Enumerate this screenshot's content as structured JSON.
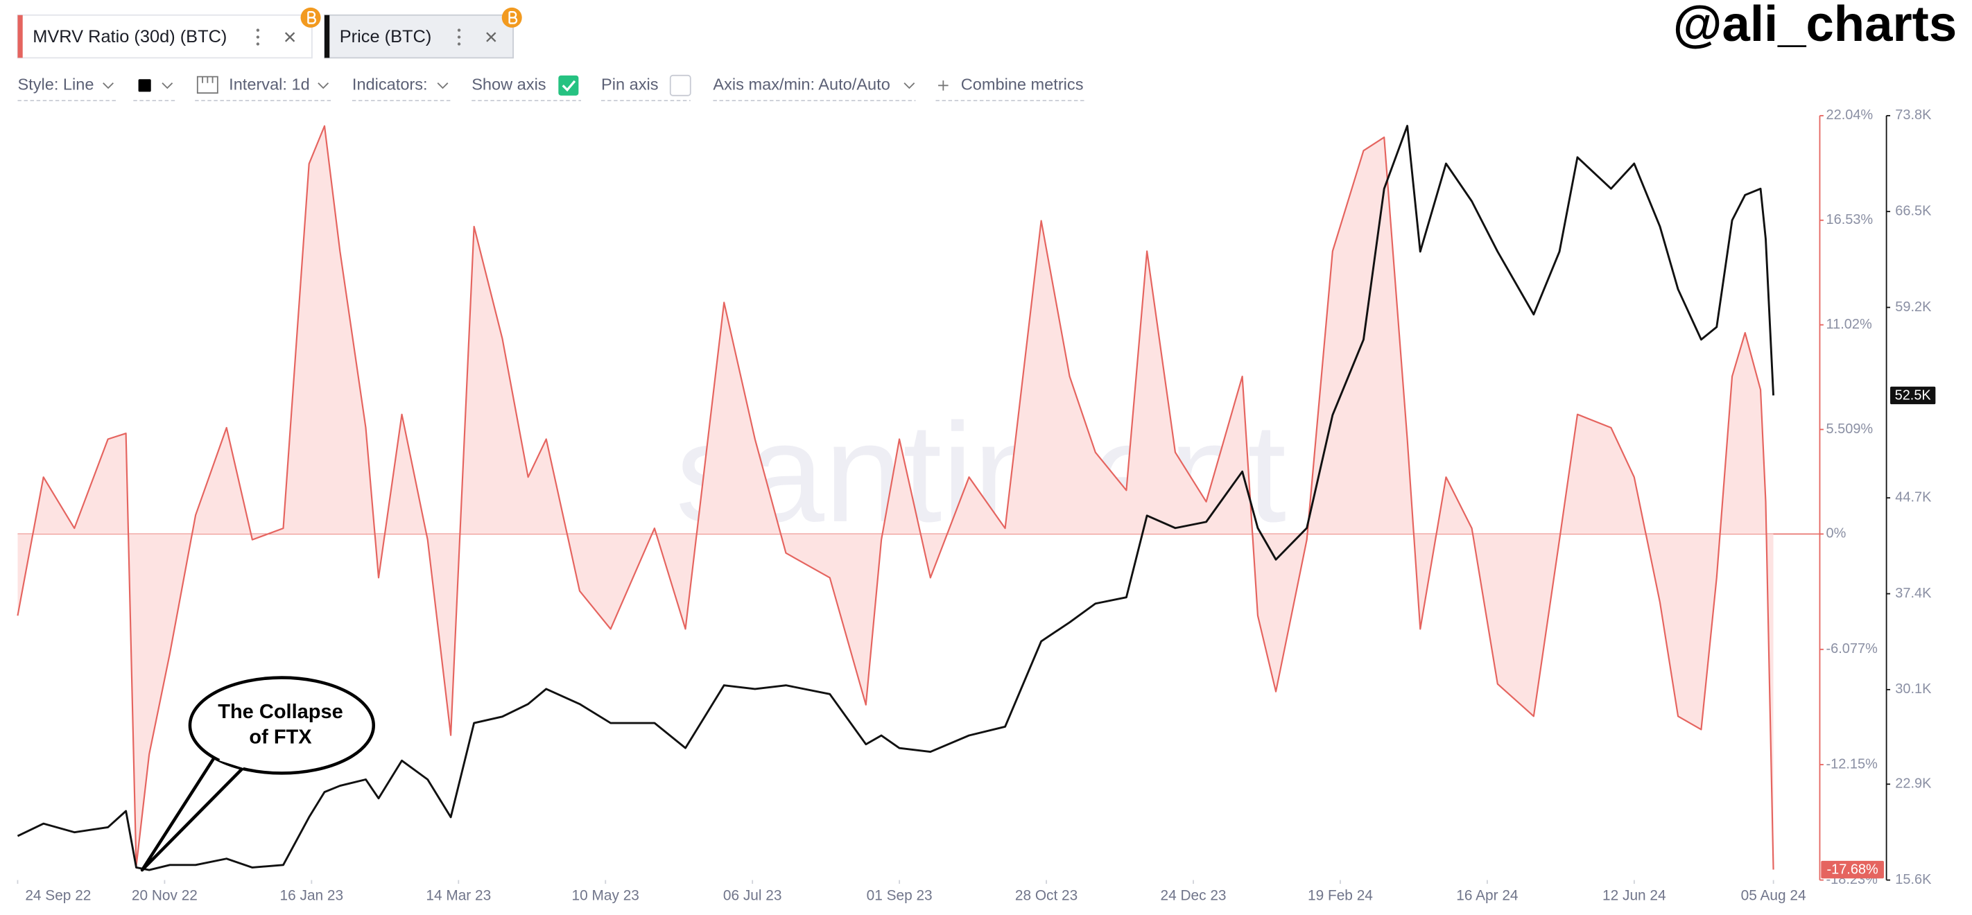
{
  "tabs": [
    "MVRV Ratio (30d) (BTC)",
    "Price (BTC)"
  ],
  "toolbar": {
    "style": "Style: Line",
    "interval": "Interval: 1d",
    "indicators": "Indicators:",
    "show_axis": "Show axis",
    "pin_axis": "Pin axis",
    "axis_maxmin": "Axis max/min: Auto/Auto",
    "combine": "Combine metrics"
  },
  "watermark": "santiment",
  "handle": "@ali_charts",
  "chart_data": {
    "type": "line",
    "annotation": [
      "The Collapse",
      "of FTX"
    ],
    "x": [
      "2022-09-24",
      "2022-10-04",
      "2022-10-16",
      "2022-10-29",
      "2022-11-05",
      "2022-11-09",
      "2022-11-14",
      "2022-11-22",
      "2022-12-02",
      "2022-12-14",
      "2022-12-24",
      "2023-01-05",
      "2023-01-15",
      "2023-01-21",
      "2023-01-27",
      "2023-02-06",
      "2023-02-11",
      "2023-02-20",
      "2023-03-02",
      "2023-03-11",
      "2023-03-20",
      "2023-03-31",
      "2023-04-10",
      "2023-04-17",
      "2023-04-30",
      "2023-05-12",
      "2023-05-29",
      "2023-06-10",
      "2023-06-25",
      "2023-07-07",
      "2023-07-19",
      "2023-08-05",
      "2023-08-19",
      "2023-08-25",
      "2023-09-01",
      "2023-09-13",
      "2023-09-28",
      "2023-10-12",
      "2023-10-26",
      "2023-11-06",
      "2023-11-16",
      "2023-11-28",
      "2023-12-06",
      "2023-12-17",
      "2023-12-29",
      "2024-01-12",
      "2024-01-18",
      "2024-01-25",
      "2024-02-06",
      "2024-02-16",
      "2024-02-28",
      "2024-03-07",
      "2024-03-16",
      "2024-03-21",
      "2024-03-31",
      "2024-04-10",
      "2024-04-20",
      "2024-05-04",
      "2024-05-14",
      "2024-05-21",
      "2024-06-03",
      "2024-06-12",
      "2024-06-22",
      "2024-06-29",
      "2024-07-08",
      "2024-07-14",
      "2024-07-20",
      "2024-07-25",
      "2024-07-31",
      "2024-08-02",
      "2024-08-05"
    ],
    "xlim": [
      "2022-09-24",
      "2024-08-22"
    ],
    "xticks": [
      {
        "value": "2022-09-24",
        "label": "24 Sep 22"
      },
      {
        "value": "2022-11-20",
        "label": "20 Nov 22"
      },
      {
        "value": "2023-01-16",
        "label": "16 Jan 23"
      },
      {
        "value": "2023-03-14",
        "label": "14 Mar 23"
      },
      {
        "value": "2023-05-10",
        "label": "10 May 23"
      },
      {
        "value": "2023-07-06",
        "label": "06 Jul 23"
      },
      {
        "value": "2023-09-01",
        "label": "01 Sep 23"
      },
      {
        "value": "2023-10-28",
        "label": "28 Oct 23"
      },
      {
        "value": "2023-12-24",
        "label": "24 Dec 23"
      },
      {
        "value": "2024-02-19",
        "label": "19 Feb 24"
      },
      {
        "value": "2024-04-16",
        "label": "16 Apr 24"
      },
      {
        "value": "2024-06-12",
        "label": "12 Jun 24"
      },
      {
        "value": "2024-08-05",
        "label": "05 Aug 24"
      }
    ],
    "ylim": [
      -18.23,
      22.04
    ],
    "yticks": [
      {
        "value": 22.04,
        "label": "22.04%"
      },
      {
        "value": 16.53,
        "label": "16.53%"
      },
      {
        "value": 11.02,
        "label": "11.02%"
      },
      {
        "value": 5.509,
        "label": "5.509%"
      },
      {
        "value": 0,
        "label": "0%"
      },
      {
        "value": -6.077,
        "label": "-6.077%"
      },
      {
        "value": -12.15,
        "label": "-12.15%"
      },
      {
        "value": -18.23,
        "label": "-18.23%"
      }
    ],
    "y2lim": [
      15600,
      73800
    ],
    "y2ticks": [
      {
        "value": 73800,
        "label": "73.8K"
      },
      {
        "value": 66500,
        "label": "66.5K"
      },
      {
        "value": 59200,
        "label": "59.2K"
      },
      {
        "value": 44700,
        "label": "44.7K"
      },
      {
        "value": 37400,
        "label": "37.4K"
      },
      {
        "value": 30100,
        "label": "30.1K"
      },
      {
        "value": 22900,
        "label": "22.9K"
      },
      {
        "value": 15600,
        "label": "15.6K"
      }
    ],
    "series": [
      {
        "name": "MVRV Ratio (30d) (BTC)",
        "color": "#e5645f",
        "fill": "#fde3e2",
        "values": [
          -4.3,
          3.0,
          0.3,
          5.0,
          5.3,
          -17.5,
          -11.6,
          -6.3,
          1.0,
          5.6,
          -0.3,
          0.3,
          19.5,
          21.5,
          14.9,
          5.6,
          -2.3,
          6.3,
          -0.3,
          -10.6,
          16.2,
          10.3,
          3.0,
          5.0,
          -3.0,
          -5.0,
          0.3,
          -5.0,
          12.2,
          5.0,
          -1.0,
          -2.3,
          -9.0,
          -0.3,
          5.0,
          -2.3,
          3.0,
          0.3,
          16.5,
          8.3,
          4.3,
          2.3,
          14.9,
          4.3,
          1.7,
          8.3,
          -4.3,
          -8.3,
          -0.3,
          14.9,
          20.2,
          20.9,
          5.0,
          -5.0,
          3.0,
          0.3,
          -7.9,
          -9.6,
          -0.3,
          6.3,
          5.6,
          3.0,
          -3.6,
          -9.6,
          -10.3,
          -2.3,
          8.3,
          10.6,
          7.6,
          1.7,
          -17.68
        ],
        "value_labels": [
          null,
          null,
          null,
          null,
          null,
          null,
          null,
          null,
          null,
          null,
          null,
          null,
          null,
          null,
          null,
          null,
          null,
          null,
          null,
          null,
          null,
          null,
          null,
          null,
          null,
          null,
          null,
          null,
          null,
          null,
          null,
          null,
          null,
          null,
          null,
          null,
          null,
          null,
          null,
          null,
          null,
          null,
          null,
          null,
          null,
          null,
          null,
          null,
          null,
          null,
          null,
          null,
          null,
          null,
          null,
          null,
          null,
          null,
          null,
          null,
          null,
          null,
          null,
          null,
          null,
          null,
          null,
          null,
          null,
          null,
          "-17.68%"
        ]
      },
      {
        "name": "Price (BTC)",
        "color": "#111111",
        "axis": "y2",
        "values": [
          18950,
          19900,
          19240,
          19620,
          20860,
          16560,
          16370,
          16750,
          16750,
          17230,
          16560,
          16750,
          20390,
          22300,
          22780,
          23260,
          21820,
          24690,
          23260,
          20390,
          27560,
          28040,
          29000,
          30150,
          29000,
          27560,
          27560,
          25650,
          30430,
          30150,
          30430,
          29760,
          25940,
          26610,
          25650,
          25360,
          26610,
          27280,
          33780,
          35220,
          36650,
          37130,
          43350,
          42400,
          42870,
          46700,
          42400,
          40000,
          42400,
          51010,
          56750,
          68240,
          73020,
          63450,
          70150,
          67280,
          63450,
          58670,
          63450,
          70630,
          68240,
          70150,
          65360,
          60580,
          56750,
          57710,
          65840,
          67760,
          68240,
          64410,
          52500
        ],
        "value_labels": [
          null,
          null,
          null,
          null,
          null,
          null,
          null,
          null,
          null,
          null,
          null,
          null,
          null,
          null,
          null,
          null,
          null,
          null,
          null,
          null,
          null,
          null,
          null,
          null,
          null,
          null,
          null,
          null,
          null,
          null,
          null,
          null,
          null,
          null,
          null,
          null,
          null,
          null,
          null,
          null,
          null,
          null,
          null,
          null,
          null,
          null,
          null,
          null,
          null,
          null,
          null,
          null,
          null,
          null,
          null,
          null,
          null,
          null,
          null,
          null,
          null,
          null,
          null,
          null,
          null,
          null,
          null,
          null,
          null,
          null,
          "52.5K"
        ]
      }
    ]
  }
}
